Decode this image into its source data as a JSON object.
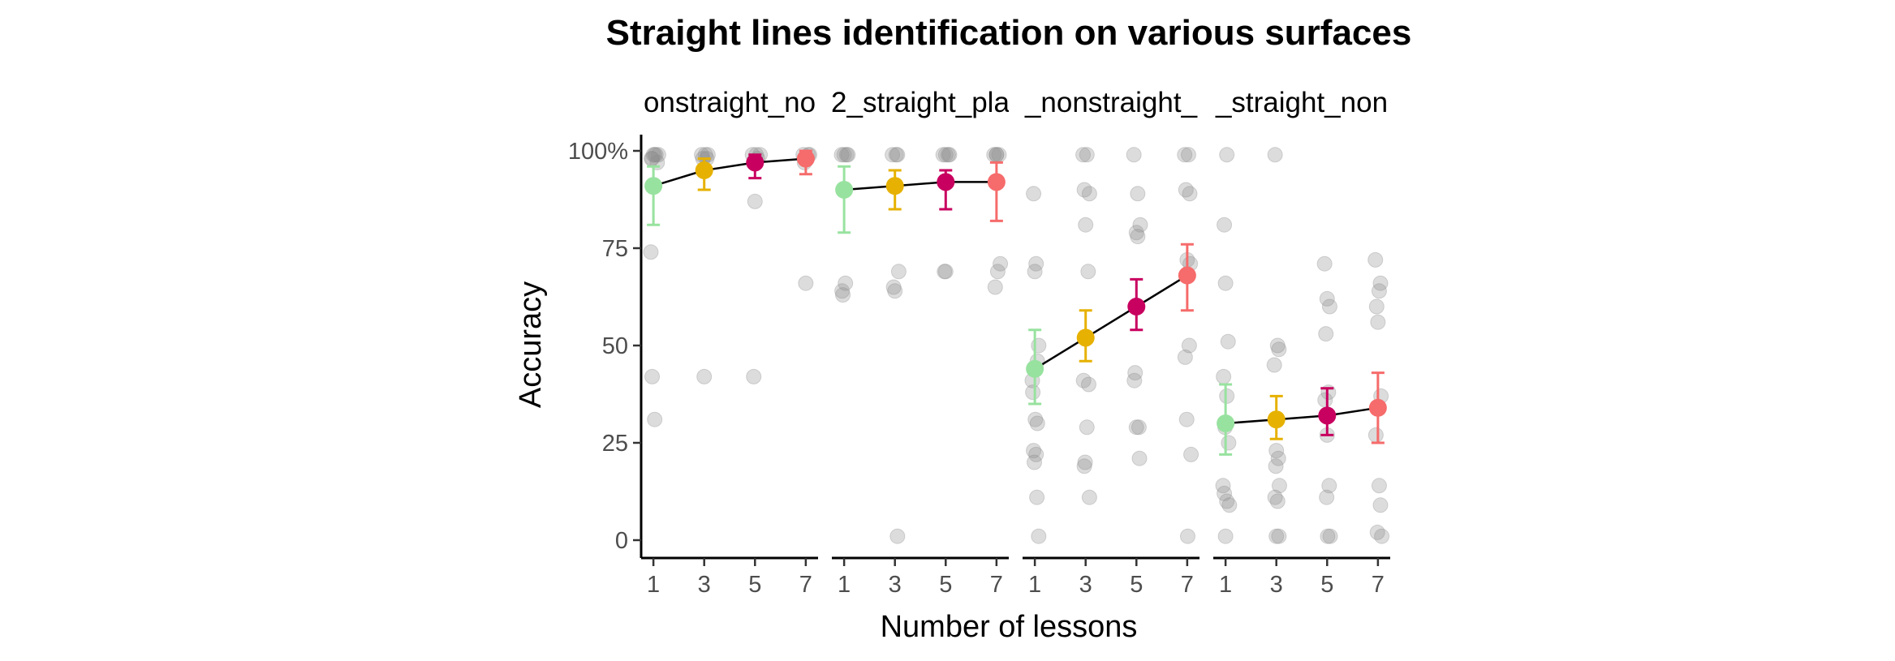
{
  "chart_data": {
    "type": "scatter",
    "title": "Straight lines identification on various surfaces",
    "xlabel": "Number of lessons",
    "ylabel": "Accuracy",
    "x_ticks": [
      "1",
      "3",
      "5",
      "7"
    ],
    "y_ticks": [
      "0",
      "25",
      "50",
      "75",
      "100%"
    ],
    "ylim": [
      0,
      100
    ],
    "xlim": [
      0.9,
      7.1
    ],
    "grid": false,
    "legend": "none",
    "line_color": "#000000",
    "point_color": "#8c8c8c",
    "lesson_colors": {
      "1": "#98e29f",
      "3": "#e6b100",
      "5": "#c8005f",
      "7": "#f66b6b"
    },
    "panels": [
      {
        "label": "onstraight_no",
        "summary": [
          {
            "x": 1,
            "mean": 91,
            "lo": 81,
            "hi": 96
          },
          {
            "x": 3,
            "mean": 95,
            "lo": 90,
            "hi": 98
          },
          {
            "x": 5,
            "mean": 97,
            "lo": 93,
            "hi": 99
          },
          {
            "x": 7,
            "mean": 98,
            "lo": 94,
            "hi": 100
          }
        ],
        "points": [
          [
            1.0,
            99
          ],
          [
            1.1,
            99
          ],
          [
            0.95,
            98
          ],
          [
            1.15,
            97
          ],
          [
            1.05,
            99
          ],
          [
            0.9,
            74
          ],
          [
            0.95,
            42
          ],
          [
            1.05,
            31
          ],
          [
            1.2,
            99
          ],
          [
            0.92,
            98
          ],
          [
            2.9,
            99
          ],
          [
            3.05,
            99
          ],
          [
            3.1,
            98
          ],
          [
            3.0,
            42
          ],
          [
            3.15,
            99
          ],
          [
            2.95,
            98
          ],
          [
            4.9,
            99
          ],
          [
            5.05,
            99
          ],
          [
            5.1,
            98
          ],
          [
            5.0,
            87
          ],
          [
            4.95,
            42
          ],
          [
            5.2,
            99
          ],
          [
            6.9,
            99
          ],
          [
            7.05,
            98
          ],
          [
            7.1,
            99
          ],
          [
            7.0,
            66
          ],
          [
            6.95,
            97
          ],
          [
            7.15,
            99
          ]
        ]
      },
      {
        "label": "2_straight_pla",
        "summary": [
          {
            "x": 1,
            "mean": 90,
            "lo": 79,
            "hi": 96
          },
          {
            "x": 3,
            "mean": 91,
            "lo": 85,
            "hi": 95
          },
          {
            "x": 5,
            "mean": 92,
            "lo": 85,
            "hi": 95
          },
          {
            "x": 7,
            "mean": 92,
            "lo": 82,
            "hi": 97
          }
        ],
        "points": [
          [
            0.9,
            99
          ],
          [
            1.0,
            99
          ],
          [
            1.1,
            99
          ],
          [
            0.95,
            63
          ],
          [
            1.05,
            66
          ],
          [
            1.15,
            99
          ],
          [
            0.92,
            64
          ],
          [
            2.9,
            99
          ],
          [
            3.05,
            99
          ],
          [
            3.1,
            99
          ],
          [
            2.95,
            65
          ],
          [
            3.0,
            64
          ],
          [
            3.15,
            69
          ],
          [
            3.1,
            1
          ],
          [
            4.9,
            99
          ],
          [
            5.0,
            99
          ],
          [
            5.1,
            99
          ],
          [
            5.0,
            69
          ],
          [
            4.95,
            69
          ],
          [
            5.15,
            99
          ],
          [
            6.9,
            99
          ],
          [
            7.0,
            99
          ],
          [
            7.1,
            99
          ],
          [
            6.95,
            65
          ],
          [
            7.05,
            69
          ],
          [
            7.15,
            71
          ],
          [
            7.0,
            99
          ]
        ]
      },
      {
        "label": "_nonstraight_",
        "summary": [
          {
            "x": 1,
            "mean": 44,
            "lo": 35,
            "hi": 54
          },
          {
            "x": 3,
            "mean": 52,
            "lo": 46,
            "hi": 59
          },
          {
            "x": 5,
            "mean": 60,
            "lo": 54,
            "hi": 67
          },
          {
            "x": 7,
            "mean": 68,
            "lo": 59,
            "hi": 76
          }
        ],
        "points": [
          [
            0.95,
            89
          ],
          [
            1.05,
            71
          ],
          [
            1.0,
            69
          ],
          [
            0.9,
            41
          ],
          [
            1.1,
            46
          ],
          [
            1.15,
            50
          ],
          [
            0.92,
            38
          ],
          [
            1.02,
            31
          ],
          [
            1.1,
            30
          ],
          [
            0.95,
            23
          ],
          [
            1.05,
            22
          ],
          [
            0.98,
            20
          ],
          [
            1.08,
            11
          ],
          [
            1.15,
            1
          ],
          [
            2.9,
            99
          ],
          [
            3.05,
            99
          ],
          [
            2.95,
            90
          ],
          [
            3.15,
            89
          ],
          [
            3.0,
            81
          ],
          [
            3.1,
            69
          ],
          [
            2.92,
            41
          ],
          [
            3.12,
            40
          ],
          [
            3.05,
            29
          ],
          [
            2.98,
            20
          ],
          [
            2.95,
            19
          ],
          [
            3.15,
            11
          ],
          [
            4.9,
            99
          ],
          [
            5.05,
            89
          ],
          [
            5.15,
            81
          ],
          [
            5.0,
            79
          ],
          [
            5.05,
            78
          ],
          [
            4.95,
            43
          ],
          [
            4.92,
            41
          ],
          [
            5.1,
            29
          ],
          [
            5.0,
            29
          ],
          [
            5.12,
            21
          ],
          [
            6.9,
            99
          ],
          [
            7.05,
            99
          ],
          [
            6.95,
            90
          ],
          [
            7.1,
            89
          ],
          [
            7.0,
            72
          ],
          [
            7.12,
            71
          ],
          [
            6.92,
            47
          ],
          [
            7.08,
            50
          ],
          [
            6.98,
            31
          ],
          [
            7.15,
            22
          ],
          [
            7.02,
            1
          ]
        ]
      },
      {
        "label": "_straight_non",
        "summary": [
          {
            "x": 1,
            "mean": 30,
            "lo": 22,
            "hi": 40
          },
          {
            "x": 3,
            "mean": 31,
            "lo": 26,
            "hi": 37
          },
          {
            "x": 5,
            "mean": 32,
            "lo": 27,
            "hi": 39
          },
          {
            "x": 7,
            "mean": 34,
            "lo": 25,
            "hi": 43
          }
        ],
        "points": [
          [
            1.05,
            99
          ],
          [
            0.95,
            81
          ],
          [
            1.0,
            66
          ],
          [
            1.1,
            51
          ],
          [
            0.92,
            42
          ],
          [
            1.05,
            37
          ],
          [
            0.98,
            29
          ],
          [
            1.12,
            25
          ],
          [
            0.9,
            14
          ],
          [
            0.95,
            12
          ],
          [
            1.05,
            10
          ],
          [
            1.15,
            9
          ],
          [
            1.0,
            1
          ],
          [
            2.95,
            99
          ],
          [
            3.1,
            49
          ],
          [
            3.05,
            50
          ],
          [
            2.92,
            45
          ],
          [
            3.0,
            23
          ],
          [
            3.08,
            21
          ],
          [
            2.98,
            19
          ],
          [
            3.12,
            14
          ],
          [
            2.95,
            11
          ],
          [
            3.05,
            10
          ],
          [
            3.0,
            1
          ],
          [
            3.1,
            1
          ],
          [
            4.9,
            71
          ],
          [
            5.0,
            62
          ],
          [
            5.1,
            60
          ],
          [
            4.95,
            53
          ],
          [
            5.05,
            38
          ],
          [
            4.92,
            36
          ],
          [
            5.0,
            27
          ],
          [
            5.08,
            14
          ],
          [
            4.98,
            11
          ],
          [
            5.02,
            1
          ],
          [
            5.12,
            1
          ],
          [
            6.9,
            72
          ],
          [
            7.05,
            64
          ],
          [
            7.1,
            66
          ],
          [
            6.95,
            60
          ],
          [
            7.0,
            56
          ],
          [
            7.12,
            37
          ],
          [
            6.92,
            27
          ],
          [
            7.05,
            14
          ],
          [
            7.1,
            9
          ],
          [
            6.98,
            2
          ],
          [
            7.15,
            1
          ]
        ]
      }
    ]
  }
}
